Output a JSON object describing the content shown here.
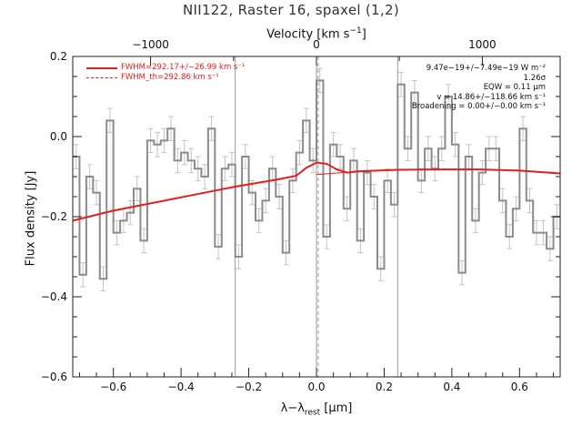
{
  "chart_data": {
    "type": "line",
    "title": "NII122, Raster 16, spaxel (1,2)",
    "xlabel": "λ−λ_rest [μm]",
    "xlabel_parts": {
      "main": "λ−λ",
      "sub": "rest",
      "post": " [μm]"
    },
    "ylabel": "Flux density [Jy]",
    "top_axis_label": "Velocity [km s⁻¹]",
    "top_axis_parts": {
      "main": "Velocity [km s",
      "sup": "−1",
      "post": "]"
    },
    "xlim": [
      -0.72,
      0.72
    ],
    "ylim": [
      -0.6,
      0.2
    ],
    "x_ticks": [
      -0.6,
      -0.4,
      -0.2,
      0.0,
      0.2,
      0.4,
      0.6
    ],
    "x_tick_labels": [
      "−0.6",
      "−0.4",
      "−0.2",
      "0.0",
      "0.2",
      "0.4",
      "0.6"
    ],
    "y_ticks": [
      -0.6,
      -0.4,
      -0.2,
      0.0,
      0.2
    ],
    "y_tick_labels": [
      "−0.6",
      "−0.4",
      "−0.2",
      "0.0",
      "0.2"
    ],
    "top_ticks": [
      -1000,
      0,
      1000
    ],
    "top_tick_labels": [
      "−1000",
      "0",
      "1000"
    ],
    "top_tick_positions_x": [
      -0.49,
      0.0,
      0.49
    ],
    "vertical_lines": [
      -0.24,
      0.0,
      0.24
    ],
    "dashed_vertical_line": 0.005,
    "series": [
      {
        "name": "data",
        "color": "#8c8c8c",
        "style": "steps",
        "x": [
          -0.72,
          -0.7,
          -0.68,
          -0.66,
          -0.64,
          -0.62,
          -0.6,
          -0.58,
          -0.56,
          -0.54,
          -0.52,
          -0.5,
          -0.48,
          -0.46,
          -0.44,
          -0.42,
          -0.4,
          -0.38,
          -0.36,
          -0.34,
          -0.32,
          -0.3,
          -0.28,
          -0.26,
          -0.24,
          -0.22,
          -0.2,
          -0.18,
          -0.16,
          -0.14,
          -0.12,
          -0.1,
          -0.08,
          -0.06,
          -0.04,
          -0.02,
          0.0,
          0.02,
          0.04,
          0.06,
          0.08,
          0.1,
          0.12,
          0.14,
          0.16,
          0.18,
          0.2,
          0.22,
          0.24,
          0.26,
          0.28,
          0.3,
          0.32,
          0.34,
          0.36,
          0.38,
          0.4,
          0.42,
          0.44,
          0.46,
          0.48,
          0.5,
          0.52,
          0.54,
          0.56,
          0.58,
          0.6,
          0.62,
          0.64,
          0.66,
          0.68,
          0.7
        ],
        "y": [
          -0.05,
          -0.345,
          -0.1,
          -0.14,
          -0.355,
          0.04,
          -0.24,
          -0.21,
          -0.19,
          -0.13,
          -0.26,
          -0.01,
          -0.02,
          -0.01,
          0.02,
          -0.06,
          -0.04,
          -0.06,
          -0.08,
          -0.1,
          0.02,
          -0.275,
          -0.08,
          -0.07,
          -0.3,
          -0.05,
          -0.14,
          -0.21,
          -0.16,
          -0.08,
          -0.15,
          -0.29,
          -0.11,
          -0.04,
          0.04,
          -0.06,
          0.14,
          -0.25,
          -0.02,
          -0.05,
          -0.18,
          -0.06,
          -0.26,
          -0.09,
          -0.15,
          -0.33,
          -0.11,
          -0.17,
          0.13,
          -0.03,
          0.11,
          -0.11,
          -0.03,
          -0.08,
          -0.03,
          0.1,
          -0.02,
          -0.34,
          -0.05,
          -0.21,
          -0.09,
          -0.03,
          -0.03,
          -0.16,
          -0.25,
          -0.18,
          0.02,
          -0.16,
          -0.24,
          -0.24,
          -0.28,
          -0.2
        ],
        "errors": 0.03
      },
      {
        "name": "fit",
        "color": "#e0201e",
        "style": "line",
        "x": [
          -0.72,
          -0.6,
          -0.48,
          -0.36,
          -0.24,
          -0.12,
          -0.06,
          -0.03,
          0.0,
          0.03,
          0.06,
          0.09,
          0.12,
          0.24,
          0.36,
          0.48,
          0.6,
          0.72
        ],
        "y": [
          -0.21,
          -0.185,
          -0.165,
          -0.145,
          -0.125,
          -0.108,
          -0.098,
          -0.078,
          -0.065,
          -0.068,
          -0.082,
          -0.09,
          -0.087,
          -0.083,
          -0.082,
          -0.082,
          -0.085,
          -0.092
        ]
      },
      {
        "name": "continuum",
        "color": "#e0201e",
        "style": "line",
        "x": [
          0.0,
          0.06,
          0.12,
          0.24
        ],
        "y": [
          -0.095,
          -0.091,
          -0.088,
          -0.083
        ]
      }
    ],
    "legend": {
      "position": "top-left",
      "entries": [
        {
          "label": "FWHM=292.17+/−26.99 km s⁻¹",
          "style": "solid",
          "color": "#e0201e"
        },
        {
          "label": "FWHM_th=292.86 km s⁻¹",
          "style": "dashed",
          "color": "#e0201e"
        }
      ]
    },
    "annotations": [
      "9.47e−19+/−7.49e−19 W m⁻²",
      "1.26σ",
      "EQW = 0.11 μm",
      "v = 14.86+/−118.66 km s⁻¹",
      "Broadening = 0.00+/−0.00 km s⁻¹"
    ],
    "grid": false
  }
}
